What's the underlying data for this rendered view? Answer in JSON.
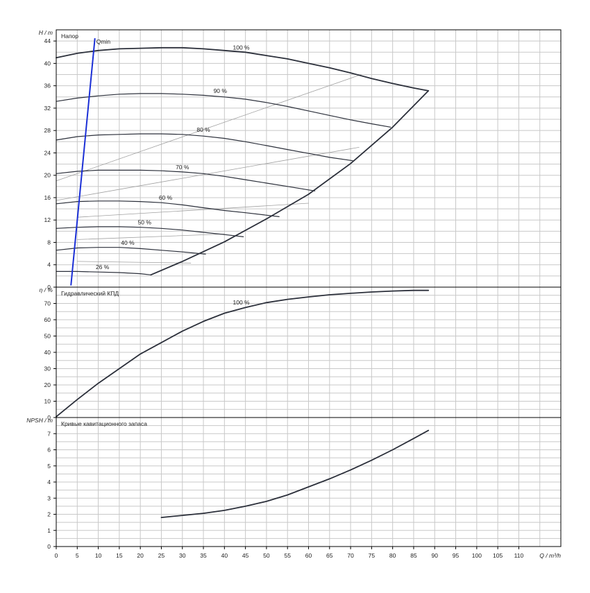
{
  "colors": {
    "grid": "#c8c8c8",
    "frame": "#000000",
    "curve": "#2b2f3a",
    "thin_curve": "#a0a0a0",
    "qmin": "#1b2fd6",
    "text": "#222222"
  },
  "chart_data": [
    {
      "type": "line",
      "panel": "head",
      "title": "Напор",
      "ylabel": "H / m",
      "ylim": [
        0,
        46
      ],
      "yticks": [
        0,
        4,
        8,
        12,
        16,
        20,
        24,
        28,
        32,
        36,
        40,
        44
      ],
      "xlim": [
        0,
        120
      ],
      "series": [
        {
          "name": "100 %",
          "label_at": [
            44,
            42.2
          ],
          "x": [
            0,
            5,
            10,
            15,
            20,
            25,
            30,
            35,
            40,
            45,
            50,
            55,
            60,
            65,
            70,
            75,
            80,
            85,
            88.5
          ],
          "y": [
            41.0,
            41.8,
            42.3,
            42.6,
            42.7,
            42.8,
            42.8,
            42.6,
            42.3,
            42.0,
            41.4,
            40.8,
            40.0,
            39.2,
            38.3,
            37.3,
            36.4,
            35.6,
            35.1
          ]
        },
        {
          "name": "90 %",
          "label_at": [
            39,
            34.5
          ],
          "x": [
            0,
            5,
            10,
            15,
            20,
            25,
            30,
            35,
            40,
            45,
            50,
            55,
            60,
            65,
            70,
            75,
            79.5
          ],
          "y": [
            33.2,
            33.8,
            34.2,
            34.5,
            34.6,
            34.6,
            34.5,
            34.3,
            34.0,
            33.6,
            33.0,
            32.3,
            31.5,
            30.7,
            29.9,
            29.2,
            28.6
          ]
        },
        {
          "name": "80 %",
          "label_at": [
            35,
            27.5
          ],
          "x": [
            0,
            5,
            10,
            15,
            20,
            25,
            30,
            35,
            40,
            45,
            50,
            55,
            60,
            65,
            70.5
          ],
          "y": [
            26.3,
            26.9,
            27.2,
            27.3,
            27.4,
            27.4,
            27.3,
            27.0,
            26.6,
            26.0,
            25.3,
            24.6,
            23.9,
            23.2,
            22.6
          ]
        },
        {
          "name": "70 %",
          "label_at": [
            30,
            20.8
          ],
          "x": [
            0,
            5,
            10,
            15,
            20,
            25,
            30,
            35,
            40,
            45,
            50,
            55,
            61.5
          ],
          "y": [
            20.3,
            20.7,
            20.9,
            20.9,
            20.9,
            20.8,
            20.6,
            20.3,
            19.8,
            19.2,
            18.6,
            18.0,
            17.2
          ]
        },
        {
          "name": "60 %",
          "label_at": [
            26,
            15.4
          ],
          "x": [
            0,
            5,
            10,
            15,
            20,
            25,
            30,
            35,
            40,
            45,
            53
          ],
          "y": [
            14.9,
            15.3,
            15.4,
            15.4,
            15.3,
            15.1,
            14.7,
            14.2,
            13.7,
            13.3,
            12.6
          ]
        },
        {
          "name": "50 %",
          "label_at": [
            21,
            11.0
          ],
          "x": [
            0,
            5,
            10,
            15,
            20,
            25,
            30,
            35,
            40,
            44.5
          ],
          "y": [
            10.5,
            10.7,
            10.8,
            10.8,
            10.7,
            10.5,
            10.2,
            9.8,
            9.4,
            9.0
          ]
        },
        {
          "name": "40 %",
          "label_at": [
            17,
            7.3
          ],
          "x": [
            0,
            5,
            10,
            15,
            20,
            25,
            30,
            35.5
          ],
          "y": [
            6.6,
            7.0,
            7.1,
            7.1,
            6.9,
            6.6,
            6.3,
            5.9
          ]
        },
        {
          "name": "26 %",
          "label_at": [
            11,
            3.0
          ],
          "x": [
            0,
            5,
            10,
            15,
            20,
            22.5
          ],
          "y": [
            2.8,
            2.8,
            2.7,
            2.6,
            2.4,
            2.2
          ]
        },
        {
          "name": "",
          "role": "envelope",
          "x": [
            22.5,
            30,
            40,
            50,
            60,
            70,
            80,
            88.5
          ],
          "y": [
            2.2,
            4.6,
            8.1,
            12.2,
            16.6,
            22.1,
            28.6,
            35.1
          ]
        },
        {
          "name": "",
          "role": "efficiency-iso",
          "x": [
            0,
            72.5
          ],
          "y": [
            19,
            38.0
          ]
        },
        {
          "name": "",
          "role": "efficiency-iso",
          "x": [
            0,
            72
          ],
          "y": [
            15.5,
            25.0
          ]
        },
        {
          "name": "",
          "role": "efficiency-iso",
          "x": [
            5,
            60
          ],
          "y": [
            12.5,
            15.0
          ]
        },
        {
          "name": "",
          "role": "efficiency-iso",
          "x": [
            5,
            40
          ],
          "y": [
            8.5,
            9.5
          ]
        },
        {
          "name": "",
          "role": "efficiency-iso",
          "x": [
            5,
            32
          ],
          "y": [
            4.6,
            4.3
          ]
        }
      ],
      "qmin": {
        "label": "Qmin",
        "x": [
          3.5,
          9.2
        ],
        "y": [
          0.3,
          44.5
        ]
      }
    },
    {
      "type": "line",
      "panel": "efficiency",
      "title": "Гидравлический КПД",
      "ylabel": "η / %",
      "ylim": [
        0,
        80
      ],
      "yticks": [
        0,
        10,
        20,
        30,
        40,
        50,
        60,
        70
      ],
      "xlim": [
        0,
        120
      ],
      "series": [
        {
          "name": "100 %",
          "label_at": [
            44,
            68.5
          ],
          "x": [
            0,
            5,
            10,
            15,
            20,
            25,
            30,
            35,
            40,
            45,
            50,
            55,
            60,
            65,
            70,
            75,
            80,
            85,
            88.5
          ],
          "y": [
            0.5,
            11,
            21,
            30,
            39,
            46,
            53,
            59,
            64,
            67.5,
            70.5,
            72.5,
            74,
            75.3,
            76.2,
            77,
            77.6,
            78,
            78
          ]
        }
      ]
    },
    {
      "type": "line",
      "panel": "npsh",
      "title": "Кривые кавитационного запаса",
      "ylabel": "NPSH / m",
      "ylim": [
        0,
        8
      ],
      "yticks": [
        0,
        1,
        2,
        3,
        4,
        5,
        6,
        7
      ],
      "xlim": [
        0,
        120
      ],
      "xlabel": "Q / m³/h",
      "xticks": [
        0,
        5,
        10,
        15,
        20,
        25,
        30,
        35,
        40,
        45,
        50,
        55,
        60,
        65,
        70,
        75,
        80,
        85,
        90,
        95,
        100,
        105,
        110
      ],
      "series": [
        {
          "name": "",
          "x": [
            25,
            30,
            35,
            40,
            45,
            50,
            55,
            60,
            65,
            70,
            75,
            80,
            85,
            88.5
          ],
          "y": [
            1.8,
            1.93,
            2.06,
            2.24,
            2.5,
            2.8,
            3.2,
            3.7,
            4.2,
            4.75,
            5.35,
            6.0,
            6.7,
            7.2
          ]
        }
      ]
    }
  ]
}
